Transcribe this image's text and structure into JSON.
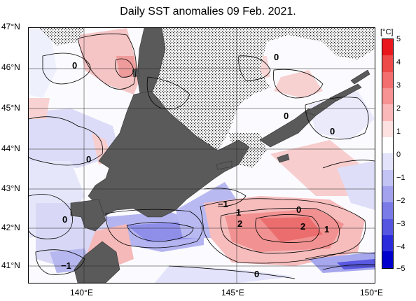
{
  "title": "Daily SST anomalies 09 Feb. 2021.",
  "lat_labels": [
    "47°N",
    "46°N",
    "45°N",
    "44°N",
    "43°N",
    "42°N",
    "41°N"
  ],
  "lon_labels": [
    "140°E",
    "145°E",
    "150°E"
  ],
  "colorbar": {
    "unit": "[°C]",
    "ticks": [
      "5",
      "4",
      "3",
      "2",
      "1",
      "0",
      "−1",
      "−2",
      "−3",
      "−4",
      "−5"
    ],
    "colors": [
      "#e8181c",
      "#ee4a4a",
      "#f36f6f",
      "#f79393",
      "#fab8b8",
      "#fde0e0",
      "#ffffff",
      "#e3e3fb",
      "#c3c3f4",
      "#a2a2ee",
      "#7b7be8",
      "#5555e2",
      "#2b2bdc",
      "#0000cc"
    ]
  },
  "contour_labels": [
    {
      "text": "0"
    },
    {
      "text": "0"
    },
    {
      "text": "0"
    },
    {
      "text": "0"
    },
    {
      "text": "0"
    },
    {
      "text": "0"
    },
    {
      "text": "0"
    },
    {
      "text": "0"
    },
    {
      "text": "−1"
    },
    {
      "text": "−1"
    },
    {
      "text": "1"
    },
    {
      "text": "1"
    },
    {
      "text": "2"
    },
    {
      "text": "2"
    }
  ]
}
